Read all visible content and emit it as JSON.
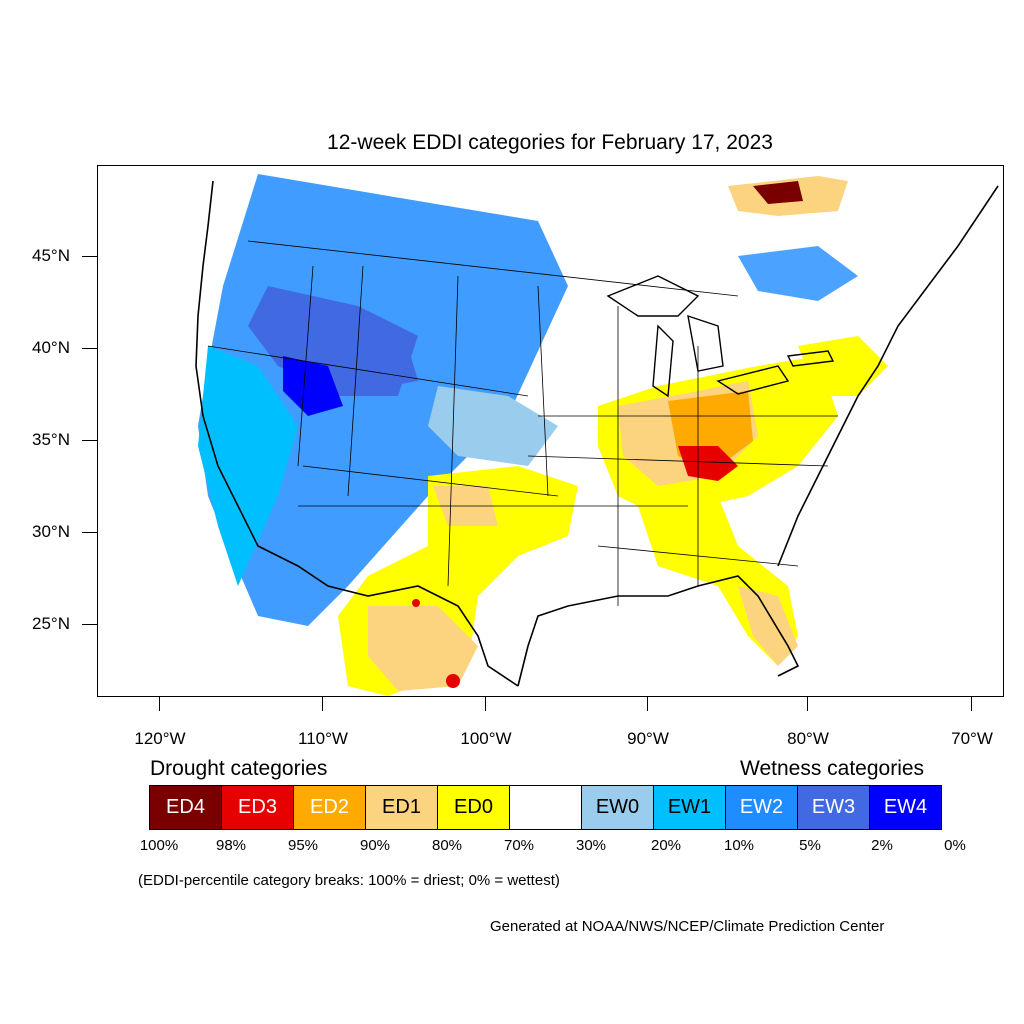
{
  "title": "12-week EDDI categories for February 17, 2023",
  "lat_labels": [
    "45°N",
    "40°N",
    "35°N",
    "30°N",
    "25°N"
  ],
  "lon_labels": [
    "120°W",
    "110°W",
    "100°W",
    "90°W",
    "80°W",
    "70°W"
  ],
  "legend": {
    "drought_heading": "Drought categories",
    "wetness_heading": "Wetness categories",
    "categories": [
      {
        "label": "ED4",
        "color": "#7a0000"
      },
      {
        "label": "ED3",
        "color": "#e60000"
      },
      {
        "label": "ED2",
        "color": "#ffaa00"
      },
      {
        "label": "ED1",
        "color": "#fcd37f"
      },
      {
        "label": "ED0",
        "color": "#ffff00"
      },
      {
        "label": "",
        "color": "#ffffff"
      },
      {
        "label": "EW0",
        "color": "#99cced"
      },
      {
        "label": "EW1",
        "color": "#00bfff"
      },
      {
        "label": "EW2",
        "color": "#1f8cff"
      },
      {
        "label": "EW3",
        "color": "#4169e1"
      },
      {
        "label": "EW4",
        "color": "#0000ff"
      }
    ],
    "percent_breaks": [
      "100%",
      "98%",
      "95%",
      "90%",
      "80%",
      "70%",
      "30%",
      "20%",
      "10%",
      "5%",
      "2%",
      "0%"
    ],
    "note": "(EDDI-percentile category breaks: 100% = driest; 0% = wettest)"
  },
  "credit": "Generated at NOAA/NWS/NCEP/Climate Prediction Center"
}
